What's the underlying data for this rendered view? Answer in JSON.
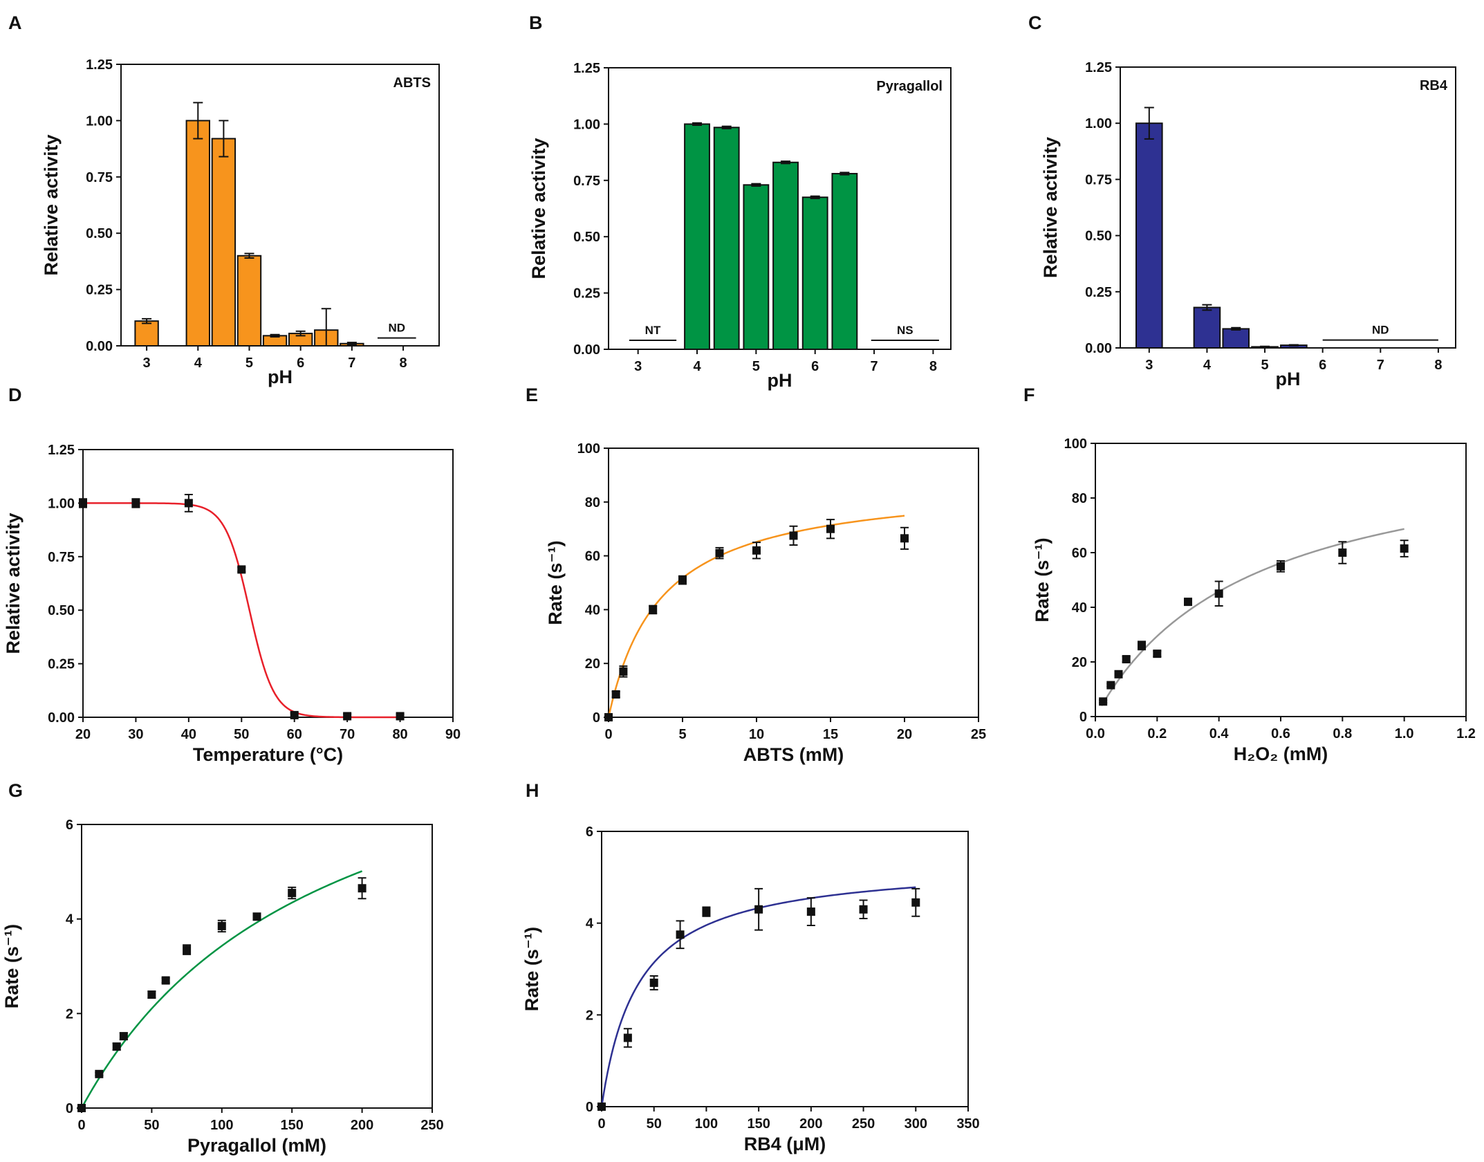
{
  "chart_data": [
    {
      "id": "A",
      "letter": "A",
      "type": "bar",
      "title": "ABTS",
      "xlabel": "pH",
      "ylabel": "Relative activity",
      "xlim": [
        2.5,
        8.7
      ],
      "ylim": [
        0,
        1.25
      ],
      "xticks": [
        3,
        4,
        5,
        6,
        7,
        8
      ],
      "xtick_labels": [
        "3",
        "4",
        "5",
        "6",
        "7",
        "8"
      ],
      "yticks": [
        0,
        0.25,
        0.5,
        0.75,
        1.0,
        1.25
      ],
      "ytick_labels": [
        "0.00",
        "0.25",
        "0.50",
        "0.75",
        "1.00",
        "1.25"
      ],
      "color": "#F7941D",
      "bar_width": 0.45,
      "x": [
        3,
        4,
        4.5,
        5,
        5.5,
        6,
        6.5,
        7
      ],
      "values": [
        0.11,
        1.0,
        0.92,
        0.4,
        0.045,
        0.055,
        0.07,
        0.01
      ],
      "errors": [
        0.01,
        0.08,
        0.08,
        0.01,
        0.005,
        0.01,
        0.095,
        0.005
      ],
      "annotations": [
        {
          "text": "ND",
          "x_range": [
            7.5,
            8.25
          ],
          "y": 0.035
        }
      ]
    },
    {
      "id": "B",
      "letter": "B",
      "type": "bar",
      "title": "Pyragallol",
      "xlabel": "pH",
      "ylabel": "Relative activity",
      "xlim": [
        2.5,
        8.3
      ],
      "ylim": [
        0,
        1.25
      ],
      "xticks": [
        3,
        4,
        5,
        6,
        7,
        8
      ],
      "xtick_labels": [
        "3",
        "4",
        "5",
        "6",
        "7",
        "8"
      ],
      "yticks": [
        0,
        0.25,
        0.5,
        0.75,
        1.0,
        1.25
      ],
      "ytick_labels": [
        "0.00",
        "0.25",
        "0.50",
        "0.75",
        "1.00",
        "1.25"
      ],
      "color": "#009444",
      "bar_width": 0.42,
      "x": [
        4,
        4.5,
        5,
        5.5,
        6,
        6.5
      ],
      "values": [
        1.0,
        0.985,
        0.73,
        0.83,
        0.675,
        0.78
      ],
      "errors": [
        0.005,
        0.005,
        0.005,
        0.005,
        0.005,
        0.005
      ],
      "annotations": [
        {
          "text": "NT",
          "x_range": [
            2.85,
            3.65
          ],
          "y": 0.04
        },
        {
          "text": "NS",
          "x_range": [
            6.95,
            8.1
          ],
          "y": 0.04
        }
      ]
    },
    {
      "id": "C",
      "letter": "C",
      "type": "bar",
      "title": "RB4",
      "xlabel": "pH",
      "ylabel": "Relative activity",
      "xlim": [
        2.5,
        8.3
      ],
      "ylim": [
        0,
        1.25
      ],
      "xticks": [
        3,
        4,
        5,
        6,
        7,
        8
      ],
      "xtick_labels": [
        "3",
        "4",
        "5",
        "6",
        "7",
        "8"
      ],
      "yticks": [
        0,
        0.25,
        0.5,
        0.75,
        1.0,
        1.25
      ],
      "ytick_labels": [
        "0.00",
        "0.25",
        "0.50",
        "0.75",
        "1.00",
        "1.25"
      ],
      "color": "#2E3192",
      "bar_width": 0.45,
      "x": [
        3,
        4,
        4.5,
        5,
        5.5
      ],
      "values": [
        1.0,
        0.18,
        0.085,
        0.005,
        0.012
      ],
      "errors": [
        0.07,
        0.012,
        0.005,
        0.002,
        0.002
      ],
      "annotations": [
        {
          "text": "ND",
          "x_range": [
            6.0,
            8.0
          ],
          "y": 0.035
        }
      ]
    },
    {
      "id": "D",
      "letter": "D",
      "type": "scatter",
      "xlabel": "Temperature (°C)",
      "ylabel": "Relative activity",
      "xlim": [
        20,
        90
      ],
      "ylim": [
        0,
        1.25
      ],
      "xticks": [
        20,
        30,
        40,
        50,
        60,
        70,
        80,
        90
      ],
      "xtick_labels": [
        "20",
        "30",
        "40",
        "50",
        "60",
        "70",
        "80",
        "90"
      ],
      "yticks": [
        0,
        0.25,
        0.5,
        0.75,
        1.0,
        1.25
      ],
      "ytick_labels": [
        "0.00",
        "0.25",
        "0.50",
        "0.75",
        "1.00",
        "1.25"
      ],
      "x": [
        20,
        30,
        40,
        50,
        60,
        70,
        80
      ],
      "y": [
        1.0,
        1.0,
        1.0,
        0.69,
        0.01,
        0.005,
        0.005
      ],
      "errors": [
        0.02,
        0.02,
        0.04,
        0.01,
        0.01,
        0.01,
        0.01
      ],
      "fit": {
        "model": "sigmoid",
        "top": 1.0,
        "x50": 51.5,
        "slope": 2.3,
        "x_range": [
          20,
          80
        ],
        "color": "#E8202A"
      }
    },
    {
      "id": "E",
      "letter": "E",
      "type": "scatter",
      "xlabel": "ABTS (mM)",
      "ylabel": "Rate (s⁻¹)",
      "xlim": [
        0,
        25
      ],
      "ylim": [
        0,
        100
      ],
      "xticks": [
        0,
        5,
        10,
        15,
        20,
        25
      ],
      "xtick_labels": [
        "0",
        "5",
        "10",
        "15",
        "20",
        "25"
      ],
      "yticks": [
        0,
        20,
        40,
        60,
        80,
        100
      ],
      "ytick_labels": [
        "0",
        "20",
        "40",
        "60",
        "80",
        "100"
      ],
      "x": [
        0,
        0.5,
        1,
        3,
        5,
        7.5,
        10,
        12.5,
        15,
        20
      ],
      "y": [
        0,
        8.5,
        17,
        40,
        51,
        61,
        62,
        67.5,
        70,
        66.5
      ],
      "errors": [
        0,
        1,
        2,
        1.5,
        1.5,
        2,
        3,
        3.5,
        3.5,
        4
      ],
      "fit": {
        "model": "michaelis-menten",
        "vmax": 88,
        "km": 3.5,
        "x_range": [
          0,
          20
        ],
        "color": "#F7941D"
      }
    },
    {
      "id": "F",
      "letter": "F",
      "type": "scatter",
      "xlabel": "H₂O₂ (mM)",
      "ylabel": "Rate (s⁻¹)",
      "xlim": [
        0,
        1.2
      ],
      "ylim": [
        0,
        100
      ],
      "xticks": [
        0,
        0.2,
        0.4,
        0.6,
        0.8,
        1.0,
        1.2
      ],
      "xtick_labels": [
        "0.0",
        "0.2",
        "0.4",
        "0.6",
        "0.8",
        "1.0",
        "1.2"
      ],
      "yticks": [
        0,
        20,
        40,
        60,
        80,
        100
      ],
      "ytick_labels": [
        "0",
        "20",
        "40",
        "60",
        "80",
        "100"
      ],
      "x": [
        0.025,
        0.05,
        0.075,
        0.1,
        0.15,
        0.2,
        0.3,
        0.4,
        0.6,
        0.8,
        1.0
      ],
      "y": [
        5.5,
        11.5,
        15.5,
        21,
        26,
        23,
        42,
        45,
        55,
        60,
        61.5
      ],
      "errors": [
        0.5,
        0.5,
        1,
        1,
        1.5,
        1,
        1,
        4.5,
        2,
        4,
        3
      ],
      "fit": {
        "model": "michaelis-menten",
        "vmax": 103,
        "km": 0.5,
        "x_range": [
          0.02,
          1.0
        ],
        "color": "#999999"
      }
    },
    {
      "id": "G",
      "letter": "G",
      "type": "scatter",
      "xlabel": "Pyragallol (mM)",
      "ylabel": "Rate (s⁻¹)",
      "xlim": [
        0,
        250
      ],
      "ylim": [
        0,
        6
      ],
      "xticks": [
        0,
        50,
        100,
        150,
        200,
        250
      ],
      "xtick_labels": [
        "0",
        "50",
        "100",
        "150",
        "200",
        "250"
      ],
      "yticks": [
        0,
        2,
        4,
        6
      ],
      "ytick_labels": [
        "0",
        "2",
        "4",
        "6"
      ],
      "x": [
        0,
        12.5,
        25,
        30,
        50,
        60,
        75,
        100,
        125,
        150,
        200
      ],
      "y": [
        0,
        0.72,
        1.3,
        1.52,
        2.4,
        2.7,
        3.35,
        3.85,
        4.05,
        4.55,
        4.65
      ],
      "errors": [
        0,
        0.03,
        0.07,
        0.07,
        0.07,
        0.05,
        0.1,
        0.12,
        0.04,
        0.12,
        0.22
      ],
      "fit": {
        "model": "michaelis-menten",
        "vmax": 9.3,
        "km": 171,
        "x_range": [
          0,
          200
        ],
        "color": "#009444"
      }
    },
    {
      "id": "H",
      "letter": "H",
      "type": "scatter",
      "xlabel": "RB4 (μM)",
      "ylabel": "Rate (s⁻¹)",
      "xlim": [
        0,
        350
      ],
      "ylim": [
        0,
        6
      ],
      "xticks": [
        0,
        50,
        100,
        150,
        200,
        250,
        300,
        350
      ],
      "xtick_labels": [
        "0",
        "50",
        "100",
        "150",
        "200",
        "250",
        "300",
        "350"
      ],
      "yticks": [
        0,
        2,
        4,
        6
      ],
      "ytick_labels": [
        "0",
        "2",
        "4",
        "6"
      ],
      "x": [
        0,
        25,
        50,
        75,
        100,
        150,
        200,
        250,
        300
      ],
      "y": [
        0,
        1.5,
        2.7,
        3.75,
        4.25,
        4.3,
        4.25,
        4.3,
        4.45
      ],
      "errors": [
        0,
        0.2,
        0.15,
        0.3,
        0.1,
        0.45,
        0.3,
        0.2,
        0.3
      ],
      "fit": {
        "model": "michaelis-menten",
        "vmax": 5.34,
        "km": 35,
        "x_range": [
          0,
          300
        ],
        "color": "#2E3192"
      }
    }
  ]
}
